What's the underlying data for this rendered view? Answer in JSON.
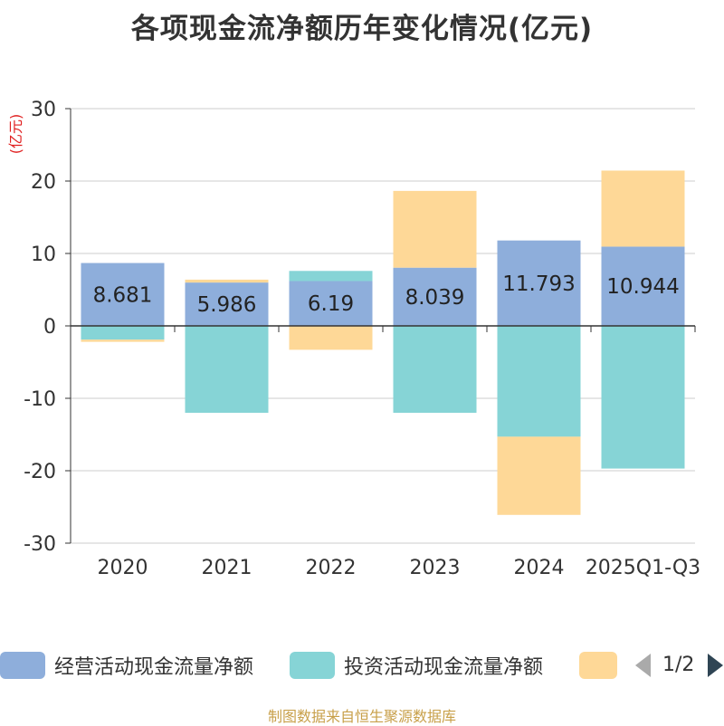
{
  "title": "各项现金流净额历年变化情况(亿元)",
  "source": "制图数据来自恒生聚源数据库",
  "legend": {
    "items": [
      {
        "label": "经营活动现金流量净额",
        "color": "#8eaedb"
      },
      {
        "label": "投资活动现金流量净额",
        "color": "#86d4d6"
      },
      {
        "label": "",
        "color": "#fed897"
      }
    ],
    "page": "1/2"
  },
  "chart_data": {
    "type": "bar",
    "stacked": true,
    "title": "各项现金流净额历年变化情况(亿元)",
    "ylabel": "(亿元)",
    "ylim": [
      -30,
      30
    ],
    "yticks": [
      30,
      20,
      10,
      0,
      -10,
      -20,
      -30
    ],
    "grid": true,
    "categories": [
      "2020",
      "2021",
      "2022",
      "2023",
      "2024",
      "2025Q1-Q3"
    ],
    "series": [
      {
        "name": "经营活动现金流量净额",
        "color": "#8eaedb",
        "values": [
          8.681,
          5.986,
          6.19,
          8.039,
          11.793,
          10.944
        ],
        "labels": [
          "8.681",
          "5.986",
          "6.19",
          "8.039",
          "11.793",
          "10.944"
        ]
      },
      {
        "name": "投资活动现金流量净额",
        "color": "#86d4d6",
        "values": [
          -1.9,
          -12.0,
          1.4,
          -12.0,
          -15.3,
          -19.7
        ]
      },
      {
        "color": "#fed897",
        "values": [
          -0.3,
          0.4,
          -3.3,
          10.6,
          -10.8,
          10.5
        ]
      }
    ]
  }
}
